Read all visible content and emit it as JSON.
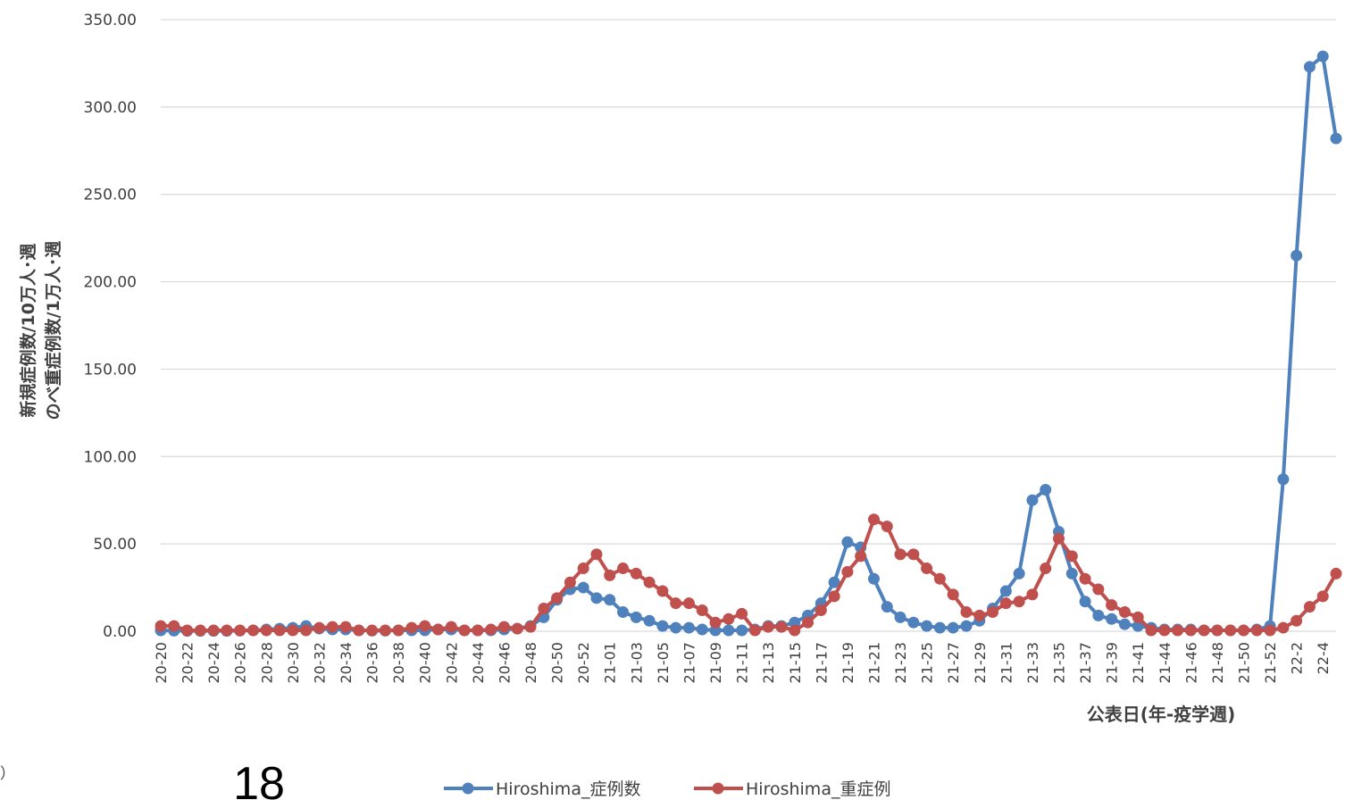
{
  "page_number": "18",
  "corner_mark": "）",
  "chart_data": {
    "type": "line",
    "title": "",
    "ylabel": [
      "新規症例数/10万人･週",
      "のべ重症例数/1万人･週"
    ],
    "xlabel": "公表日(年-疫学週)",
    "ylim": [
      0,
      350
    ],
    "ytick_labels": [
      "0.00",
      "50.00",
      "100.00",
      "150.00",
      "200.00",
      "250.00",
      "300.00",
      "350.00"
    ],
    "grid": true,
    "legend_position": "bottom",
    "x": [
      "20-20",
      "20-21",
      "20-22",
      "20-23",
      "20-24",
      "20-25",
      "20-26",
      "20-27",
      "20-28",
      "20-29",
      "20-30",
      "20-31",
      "20-32",
      "20-33",
      "20-34",
      "20-35",
      "20-36",
      "20-37",
      "20-38",
      "20-39",
      "20-40",
      "20-41",
      "20-42",
      "20-43",
      "20-44",
      "20-45",
      "20-46",
      "20-47",
      "20-48",
      "20-49",
      "20-50",
      "20-51",
      "20-52",
      "20-53",
      "21-01",
      "21-02",
      "21-03",
      "21-04",
      "21-05",
      "21-06",
      "21-07",
      "21-08",
      "21-09",
      "21-10",
      "21-11",
      "21-12",
      "21-13",
      "21-14",
      "21-15",
      "21-16",
      "21-17",
      "21-18",
      "21-19",
      "21-20",
      "21-21",
      "21-22",
      "21-23",
      "21-24",
      "21-25",
      "21-26",
      "21-27",
      "21-28",
      "21-29",
      "21-30",
      "21-31",
      "21-32",
      "21-33",
      "21-34",
      "21-35",
      "21-36",
      "21-37",
      "21-38",
      "21-39",
      "21-40",
      "21-41",
      "21-42",
      "21-44",
      "21-45",
      "21-46",
      "21-47",
      "21-48",
      "21-49",
      "21-50",
      "21-51",
      "21-52",
      "22-1",
      "22-2",
      "22-3",
      "22-4",
      "22-5"
    ],
    "x_tick_labels": [
      "20-20",
      "20-22",
      "20-24",
      "20-26",
      "20-28",
      "20-30",
      "20-32",
      "20-34",
      "20-36",
      "20-38",
      "20-40",
      "20-42",
      "20-44",
      "20-46",
      "20-48",
      "20-50",
      "20-52",
      "21-01",
      "21-03",
      "21-05",
      "21-07",
      "21-09",
      "21-11",
      "21-13",
      "21-15",
      "21-17",
      "21-19",
      "21-21",
      "21-23",
      "21-25",
      "21-27",
      "21-29",
      "21-31",
      "21-33",
      "21-35",
      "21-37",
      "21-39",
      "21-41",
      "21-44",
      "21-46",
      "21-48",
      "21-50",
      "21-52",
      "22-2",
      "22-4"
    ],
    "series": [
      {
        "name": "Hiroshima_症例数",
        "color": "#4f81bd",
        "values": [
          0.5,
          0.3,
          0.2,
          0.2,
          0.2,
          0.2,
          0.3,
          0.5,
          1,
          1.5,
          2,
          3,
          1.5,
          1,
          1,
          0.5,
          0.3,
          0.3,
          0.5,
          0.5,
          0.5,
          1,
          1,
          0.5,
          0.5,
          0.5,
          1,
          1.5,
          3,
          8,
          18,
          24,
          25,
          19,
          18,
          11,
          8,
          6,
          3,
          2,
          2,
          1,
          0.5,
          0.5,
          0.5,
          1,
          3,
          3,
          5,
          9,
          16,
          28,
          51,
          48,
          30,
          14,
          8,
          5,
          3,
          2,
          2,
          3,
          6,
          13,
          23,
          33,
          75,
          81,
          57,
          33,
          17,
          9,
          7,
          4,
          3,
          2,
          1,
          1,
          1,
          0.5,
          0.5,
          0.5,
          0.5,
          1,
          3,
          87,
          215,
          323,
          329,
          282
        ]
      },
      {
        "name": "Hiroshima_重症例",
        "color": "#c0504d",
        "values": [
          3,
          3,
          0.5,
          0.5,
          0.5,
          0.5,
          0.5,
          0.5,
          0.5,
          0.5,
          0.5,
          0.5,
          2,
          2.5,
          2.5,
          0.5,
          0.5,
          0.5,
          0.5,
          2,
          3,
          1,
          2.5,
          0.5,
          0.5,
          1,
          2.5,
          1.5,
          2.5,
          13,
          19,
          28,
          36,
          44,
          32,
          36,
          33,
          28,
          23,
          16,
          16,
          12,
          5,
          7,
          10,
          0.5,
          2.5,
          2.5,
          0.5,
          5,
          12,
          20,
          34,
          43,
          64,
          60,
          44,
          44,
          36,
          30,
          21,
          11,
          9,
          11,
          16,
          17,
          21,
          36,
          53,
          43,
          30,
          24,
          15,
          11,
          8,
          0.5,
          0.5,
          0.5,
          0.5,
          0.5,
          0.5,
          0.5,
          0.5,
          0.5,
          0.5,
          2,
          6,
          14,
          20,
          33
        ]
      }
    ]
  }
}
